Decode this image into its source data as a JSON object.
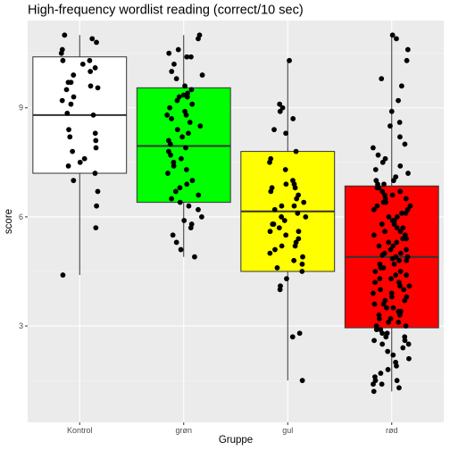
{
  "chart_data": {
    "type": "box",
    "title": "High-frequency wordlist reading (correct/10 sec)",
    "xlabel": "Gruppe",
    "ylabel": "score",
    "categories": [
      "Kontrol",
      "grøn",
      "gul",
      "rød"
    ],
    "ylim": [
      0.35,
      11.4
    ],
    "y_ticks": [
      3,
      6,
      9
    ],
    "grid": true,
    "legend": "none",
    "boxes": [
      {
        "category": "Kontrol",
        "whisker_low": 4.4,
        "q1": 7.2,
        "median": 8.8,
        "q3": 10.4,
        "whisker_high": 11.0,
        "fill": "#ffffff"
      },
      {
        "category": "grøn",
        "whisker_low": 4.9,
        "q1": 6.4,
        "median": 7.95,
        "q3": 9.55,
        "whisker_high": 11.0,
        "fill": "#00ff00"
      },
      {
        "category": "gul",
        "whisker_low": 1.5,
        "q1": 4.5,
        "median": 6.15,
        "q3": 7.8,
        "whisker_high": 10.3,
        "fill": "#ffff00"
      },
      {
        "category": "rød",
        "whisker_low": 1.2,
        "q1": 2.95,
        "median": 4.9,
        "q3": 6.85,
        "whisker_high": 11.0,
        "fill": "#ff0000"
      }
    ],
    "points": [
      {
        "category": "Kontrol",
        "values": [
          11.0,
          10.9,
          10.8,
          10.6,
          10.5,
          10.3,
          10.3,
          10.2,
          10.1,
          10.0,
          9.9,
          9.7,
          9.7,
          9.6,
          9.55,
          9.5,
          9.3,
          9.2,
          9.1,
          8.85,
          8.8,
          8.4,
          8.3,
          8.2,
          8.1,
          7.9,
          7.8,
          7.6,
          7.5,
          7.4,
          7.2,
          7.0,
          6.7,
          6.3,
          5.7,
          4.4
        ]
      },
      {
        "category": "grøn",
        "values": [
          11.0,
          10.9,
          10.6,
          10.5,
          10.4,
          10.4,
          10.2,
          10.0,
          9.9,
          9.8,
          9.6,
          9.5,
          9.4,
          9.35,
          9.3,
          9.3,
          9.2,
          9.1,
          9.0,
          8.9,
          8.8,
          8.8,
          8.7,
          8.6,
          8.5,
          8.4,
          8.3,
          8.2,
          8.1,
          8.0,
          7.9,
          7.8,
          7.7,
          7.6,
          7.5,
          7.4,
          7.3,
          7.2,
          7.0,
          6.9,
          6.8,
          6.7,
          6.6,
          6.5,
          6.4,
          6.3,
          6.2,
          6.0,
          5.9,
          5.8,
          5.7,
          5.5,
          5.3,
          5.1,
          4.9
        ]
      },
      {
        "category": "gul",
        "values": [
          10.3,
          9.1,
          9.0,
          8.9,
          8.7,
          8.4,
          8.3,
          7.8,
          7.6,
          7.5,
          7.3,
          7.0,
          6.9,
          6.9,
          6.8,
          6.8,
          6.7,
          6.6,
          6.5,
          6.4,
          6.3,
          6.3,
          6.2,
          6.1,
          6.0,
          6.0,
          5.9,
          5.8,
          5.8,
          5.7,
          5.6,
          5.6,
          5.5,
          5.4,
          5.3,
          5.2,
          5.2,
          5.1,
          5.0,
          4.9,
          4.8,
          4.7,
          4.6,
          4.5,
          4.3,
          4.1,
          4.0,
          2.8,
          2.7,
          1.5
        ]
      },
      {
        "category": "rød",
        "values": [
          11.0,
          10.9,
          10.6,
          10.3,
          9.8,
          9.6,
          9.2,
          8.9,
          8.6,
          8.5,
          8.2,
          8.0,
          7.9,
          7.7,
          7.6,
          7.5,
          7.4,
          7.3,
          7.2,
          7.1,
          7.0,
          7.0,
          6.9,
          6.9,
          6.8,
          6.8,
          6.7,
          6.7,
          6.6,
          6.6,
          6.5,
          6.5,
          6.4,
          6.4,
          6.3,
          6.3,
          6.2,
          6.2,
          6.1,
          6.1,
          6.0,
          6.0,
          5.9,
          5.9,
          5.8,
          5.8,
          5.7,
          5.7,
          5.6,
          5.6,
          5.5,
          5.5,
          5.4,
          5.4,
          5.3,
          5.3,
          5.2,
          5.2,
          5.1,
          5.1,
          5.0,
          5.0,
          4.95,
          4.9,
          4.9,
          4.85,
          4.8,
          4.8,
          4.7,
          4.7,
          4.6,
          4.6,
          4.5,
          4.5,
          4.4,
          4.4,
          4.3,
          4.3,
          4.2,
          4.2,
          4.1,
          4.1,
          4.0,
          4.0,
          3.9,
          3.9,
          3.8,
          3.8,
          3.7,
          3.7,
          3.6,
          3.6,
          3.5,
          3.5,
          3.4,
          3.4,
          3.3,
          3.3,
          3.2,
          3.2,
          3.1,
          3.1,
          3.0,
          3.0,
          2.9,
          2.9,
          2.8,
          2.8,
          2.7,
          2.7,
          2.6,
          2.6,
          2.5,
          2.5,
          2.4,
          2.3,
          2.2,
          2.1,
          2.0,
          1.9,
          1.8,
          1.7,
          1.6,
          1.5,
          1.5,
          1.4,
          1.4,
          1.3,
          1.2
        ]
      }
    ],
    "colors": {
      "panel": "#ebebeb",
      "grid_major": "#ffffff",
      "grid_minor": "#f5f5f5",
      "points": "#000000",
      "box_outline": "#333333",
      "whisker": "#333333"
    }
  }
}
